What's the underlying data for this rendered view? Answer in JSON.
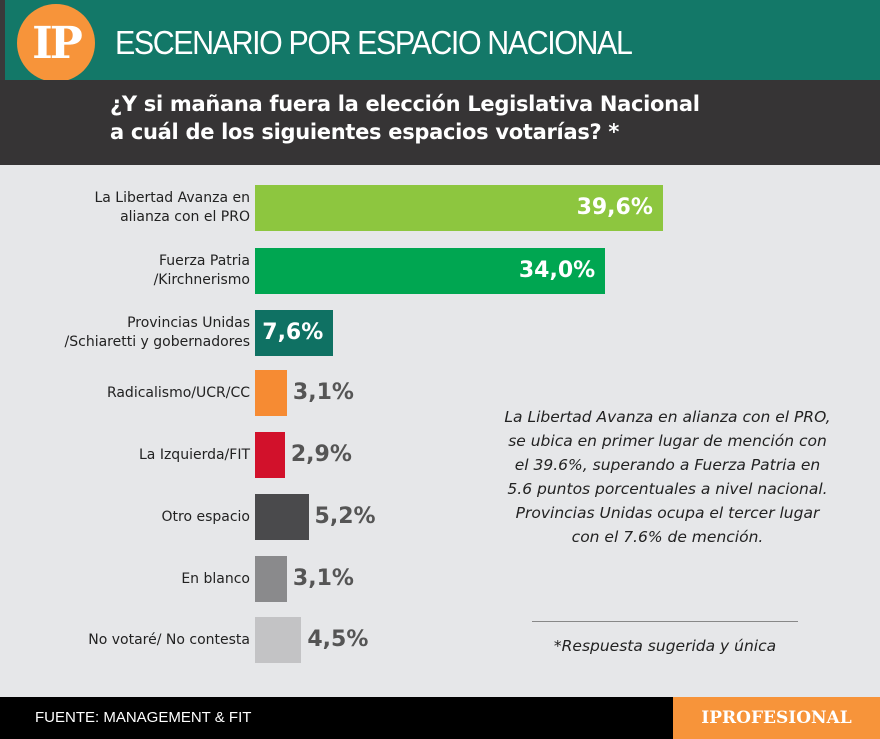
{
  "header": {
    "logo": "IP",
    "title": "ESCENARIO POR ESPACIO NACIONAL"
  },
  "question": {
    "line1": "¿Y si mañana fuera la elección Legislativa Nacional",
    "line2": "a cuál de los siguientes espacios votarías? *"
  },
  "chart_data": {
    "type": "bar",
    "orientation": "horizontal",
    "categories": [
      "La Libertad Avanza en\nalianza con el PRO",
      "Fuerza Patria\n/Kirchnerismo",
      "Provincias Unidas\n/Schiaretti y gobernadores",
      "Radicalismo/UCR/CC",
      "La Izquierda/FIT",
      "Otro espacio",
      "En blanco",
      "No votaré/ No contesta"
    ],
    "values": [
      39.6,
      34.0,
      7.6,
      3.1,
      2.9,
      5.2,
      3.1,
      4.5
    ],
    "data_labels": [
      "39,6%",
      "34,0%",
      "7,6%",
      "3,1%",
      "2,9%",
      "5,2%",
      "3,1%",
      "4,5%"
    ],
    "colors": [
      "#8dc63f",
      "#00a651",
      "#0f7163",
      "#f68b33",
      "#d2112b",
      "#4a4a4c",
      "#8a8a8c",
      "#c3c3c5"
    ],
    "label_colors": [
      "#ffffff",
      "#ffffff",
      "#ffffff",
      "#555555",
      "#555555",
      "#555555",
      "#555555",
      "#555555"
    ]
  },
  "note": "La Libertad Avanza en alianza con el PRO, se ubica en primer lugar de mención con el 39.6%, superando a Fuerza Patria en 5.6 puntos porcentuales a nivel nacional. Provincias Unidas ocupa el tercer lugar con el 7.6% de mención.",
  "footnote": "*Respuesta sugerida y única",
  "footer": {
    "source": "FUENTE: MANAGEMENT & FIT",
    "brand": "IPROFESIONAL"
  },
  "colors": {
    "header": "#137868",
    "question_bg": "#363435",
    "background": "#e6e7e9",
    "brand": "#f7943a"
  }
}
